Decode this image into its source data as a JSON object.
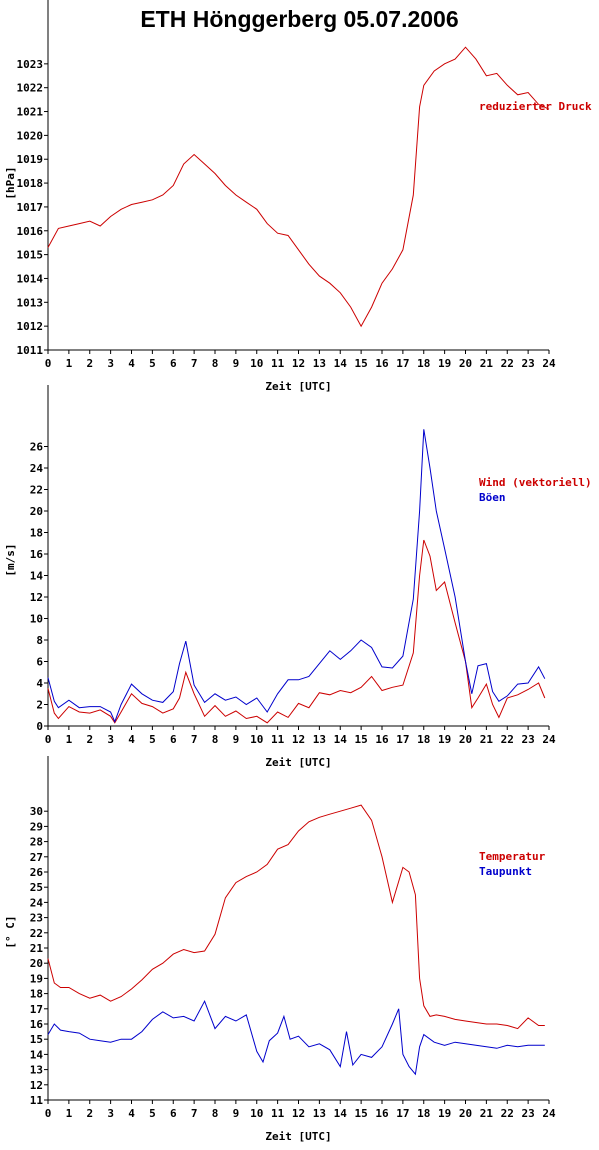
{
  "title": "ETH Hönggerberg 05.07.2006",
  "colors": {
    "red": "#cc0000",
    "blue": "#0000cc",
    "axis": "#000000"
  },
  "chart_data": [
    {
      "type": "line",
      "xlabel": "Zeit [UTC]",
      "ylabel": "[hPa]",
      "xlim": [
        0,
        24
      ],
      "ylim": [
        1011,
        1024
      ],
      "x_ticks": [
        0,
        1,
        2,
        3,
        4,
        5,
        6,
        7,
        8,
        9,
        10,
        11,
        12,
        13,
        14,
        15,
        16,
        17,
        18,
        19,
        20,
        21,
        22,
        23,
        24
      ],
      "y_ticks": [
        1011,
        1012,
        1013,
        1014,
        1015,
        1016,
        1017,
        1018,
        1019,
        1020,
        1021,
        1022,
        1023
      ],
      "grid": false,
      "legend_placement": "right",
      "series": [
        {
          "name": "reduzierter Druck",
          "color": "#cc0000",
          "x": [
            0,
            0.5,
            1,
            1.5,
            2,
            2.5,
            3,
            3.5,
            4,
            4.5,
            5,
            5.5,
            6,
            6.5,
            7,
            7.5,
            8,
            8.5,
            9,
            9.5,
            10,
            10.5,
            11,
            11.5,
            12,
            12.5,
            13,
            13.5,
            14,
            14.5,
            15,
            15.5,
            16,
            16.5,
            17,
            17.5,
            17.8,
            18,
            18.5,
            19,
            19.5,
            20,
            20.5,
            21,
            21.5,
            22,
            22.5,
            23,
            23.5,
            24
          ],
          "values": [
            1015.3,
            1016.1,
            1016.2,
            1016.3,
            1016.4,
            1016.2,
            1016.6,
            1016.9,
            1017.1,
            1017.2,
            1017.3,
            1017.5,
            1017.9,
            1018.8,
            1019.2,
            1018.8,
            1018.4,
            1017.9,
            1017.5,
            1017.2,
            1016.9,
            1016.3,
            1015.9,
            1015.8,
            1015.2,
            1014.6,
            1014.1,
            1013.8,
            1013.4,
            1012.8,
            1012.0,
            1012.8,
            1013.8,
            1014.4,
            1015.2,
            1017.5,
            1021.2,
            1022.1,
            1022.7,
            1023.0,
            1023.2,
            1023.7,
            1023.2,
            1022.5,
            1022.6,
            1022.1,
            1021.7,
            1021.8,
            1021.3,
            1021.1
          ]
        }
      ]
    },
    {
      "type": "line",
      "xlabel": "Zeit [UTC]",
      "ylabel": "[m/s]",
      "xlim": [
        0,
        24
      ],
      "ylim": [
        0,
        28
      ],
      "x_ticks": [
        0,
        1,
        2,
        3,
        4,
        5,
        6,
        7,
        8,
        9,
        10,
        11,
        12,
        13,
        14,
        15,
        16,
        17,
        18,
        19,
        20,
        21,
        22,
        23,
        24
      ],
      "y_ticks": [
        0,
        2,
        4,
        6,
        8,
        10,
        12,
        14,
        16,
        18,
        20,
        22,
        24,
        26
      ],
      "grid": false,
      "legend_placement": "right",
      "series": [
        {
          "name": "Wind (vektoriell)",
          "color": "#cc0000",
          "x": [
            0,
            0.3,
            0.5,
            1,
            1.5,
            2,
            2.5,
            3,
            3.2,
            3.5,
            4,
            4.5,
            5,
            5.5,
            6,
            6.3,
            6.6,
            7,
            7.5,
            8,
            8.5,
            9,
            9.5,
            10,
            10.5,
            11,
            11.5,
            12,
            12.5,
            13,
            13.5,
            14,
            14.5,
            15,
            15.5,
            16,
            16.5,
            17,
            17.5,
            17.8,
            18,
            18.3,
            18.6,
            19,
            19.5,
            20,
            20.3,
            20.6,
            21,
            21.3,
            21.6,
            22,
            22.5,
            23,
            23.5,
            23.8
          ],
          "values": [
            3.5,
            1.2,
            0.7,
            1.8,
            1.3,
            1.2,
            1.5,
            0.9,
            0.3,
            1.3,
            3.0,
            2.1,
            1.8,
            1.2,
            1.6,
            2.6,
            5.0,
            3.0,
            0.9,
            1.9,
            0.9,
            1.4,
            0.7,
            0.9,
            0.3,
            1.3,
            0.8,
            2.1,
            1.7,
            3.1,
            2.9,
            3.3,
            3.1,
            3.6,
            4.6,
            3.3,
            3.6,
            3.8,
            6.8,
            14.0,
            17.3,
            15.8,
            12.6,
            13.4,
            9.6,
            6.0,
            1.7,
            2.6,
            3.9,
            2.0,
            0.8,
            2.6,
            2.9,
            3.4,
            4.0,
            2.6
          ]
        },
        {
          "name": "Böen",
          "color": "#0000cc",
          "x": [
            0,
            0.3,
            0.5,
            1,
            1.5,
            2,
            2.5,
            3,
            3.2,
            3.5,
            4,
            4.5,
            5,
            5.5,
            6,
            6.3,
            6.6,
            7,
            7.5,
            8,
            8.5,
            9,
            9.5,
            10,
            10.5,
            11,
            11.5,
            12,
            12.5,
            13,
            13.5,
            14,
            14.5,
            15,
            15.5,
            16,
            16.5,
            17,
            17.5,
            17.8,
            18,
            18.3,
            18.6,
            19,
            19.5,
            20,
            20.3,
            20.6,
            21,
            21.3,
            21.6,
            22,
            22.5,
            23,
            23.5,
            23.8
          ],
          "values": [
            4.5,
            2.3,
            1.7,
            2.4,
            1.7,
            1.8,
            1.8,
            1.3,
            0.4,
            2.0,
            3.9,
            3.0,
            2.4,
            2.2,
            3.2,
            5.8,
            7.9,
            3.8,
            2.2,
            3.0,
            2.4,
            2.7,
            2.0,
            2.6,
            1.3,
            3.0,
            4.3,
            4.3,
            4.6,
            5.8,
            7.0,
            6.2,
            7.0,
            8.0,
            7.3,
            5.5,
            5.4,
            6.5,
            11.8,
            20.0,
            27.6,
            24.0,
            20.0,
            16.5,
            12.0,
            6.0,
            3.0,
            5.6,
            5.8,
            3.2,
            2.3,
            2.8,
            3.9,
            4.0,
            5.5,
            4.4
          ]
        }
      ]
    },
    {
      "type": "line",
      "xlabel": "Zeit [UTC]",
      "ylabel": "[° C]",
      "xlim": [
        0,
        24
      ],
      "ylim": [
        11,
        31
      ],
      "x_ticks": [
        0,
        1,
        2,
        3,
        4,
        5,
        6,
        7,
        8,
        9,
        10,
        11,
        12,
        13,
        14,
        15,
        16,
        17,
        18,
        19,
        20,
        21,
        22,
        23,
        24
      ],
      "y_ticks": [
        11,
        12,
        13,
        14,
        15,
        16,
        17,
        18,
        19,
        20,
        21,
        22,
        23,
        24,
        25,
        26,
        27,
        28,
        29,
        30
      ],
      "grid": false,
      "legend_placement": "right",
      "series": [
        {
          "name": "Temperatur",
          "color": "#cc0000",
          "x": [
            0,
            0.3,
            0.6,
            1,
            1.5,
            2,
            2.5,
            3,
            3.5,
            4,
            4.5,
            5,
            5.5,
            6,
            6.5,
            7,
            7.5,
            8,
            8.5,
            9,
            9.5,
            10,
            10.5,
            11,
            11.5,
            12,
            12.5,
            13,
            13.5,
            14,
            14.5,
            15,
            15.5,
            16,
            16.5,
            17,
            17.3,
            17.6,
            17.8,
            18,
            18.3,
            18.6,
            19,
            19.5,
            20,
            20.5,
            21,
            21.5,
            22,
            22.5,
            23,
            23.5,
            23.8
          ],
          "values": [
            20.3,
            18.7,
            18.4,
            18.4,
            18.0,
            17.7,
            17.9,
            17.5,
            17.8,
            18.3,
            18.9,
            19.6,
            20.0,
            20.6,
            20.9,
            20.7,
            20.8,
            21.9,
            24.3,
            25.3,
            25.7,
            26.0,
            26.5,
            27.5,
            27.8,
            28.7,
            29.3,
            29.6,
            29.8,
            30.0,
            30.2,
            30.4,
            29.4,
            27.0,
            24.0,
            26.3,
            26.0,
            24.5,
            19.0,
            17.2,
            16.5,
            16.6,
            16.5,
            16.3,
            16.2,
            16.1,
            16.0,
            16.0,
            15.9,
            15.7,
            16.4,
            15.9,
            15.9
          ]
        },
        {
          "name": "Taupunkt",
          "color": "#0000cc",
          "x": [
            0,
            0.3,
            0.6,
            1,
            1.5,
            2,
            2.5,
            3,
            3.5,
            4,
            4.5,
            5,
            5.5,
            6,
            6.5,
            7,
            7.5,
            8,
            8.5,
            9,
            9.5,
            10,
            10.3,
            10.6,
            11,
            11.3,
            11.6,
            12,
            12.5,
            13,
            13.5,
            14,
            14.3,
            14.6,
            15,
            15.5,
            16,
            16.5,
            16.8,
            17,
            17.3,
            17.6,
            17.8,
            18,
            18.5,
            19,
            19.5,
            20,
            20.5,
            21,
            21.5,
            22,
            22.5,
            23,
            23.5,
            23.8
          ],
          "values": [
            15.3,
            16.0,
            15.6,
            15.5,
            15.4,
            15.0,
            14.9,
            14.8,
            15.0,
            15.0,
            15.5,
            16.3,
            16.8,
            16.4,
            16.5,
            16.2,
            17.5,
            15.7,
            16.5,
            16.2,
            16.6,
            14.2,
            13.5,
            14.9,
            15.4,
            16.5,
            15.0,
            15.2,
            14.5,
            14.7,
            14.3,
            13.2,
            15.5,
            13.3,
            14.0,
            13.8,
            14.5,
            16.0,
            17.0,
            14.0,
            13.2,
            12.7,
            14.5,
            15.3,
            14.8,
            14.6,
            14.8,
            14.7,
            14.6,
            14.5,
            14.4,
            14.6,
            14.5,
            14.6,
            14.6,
            14.6
          ]
        }
      ]
    }
  ]
}
